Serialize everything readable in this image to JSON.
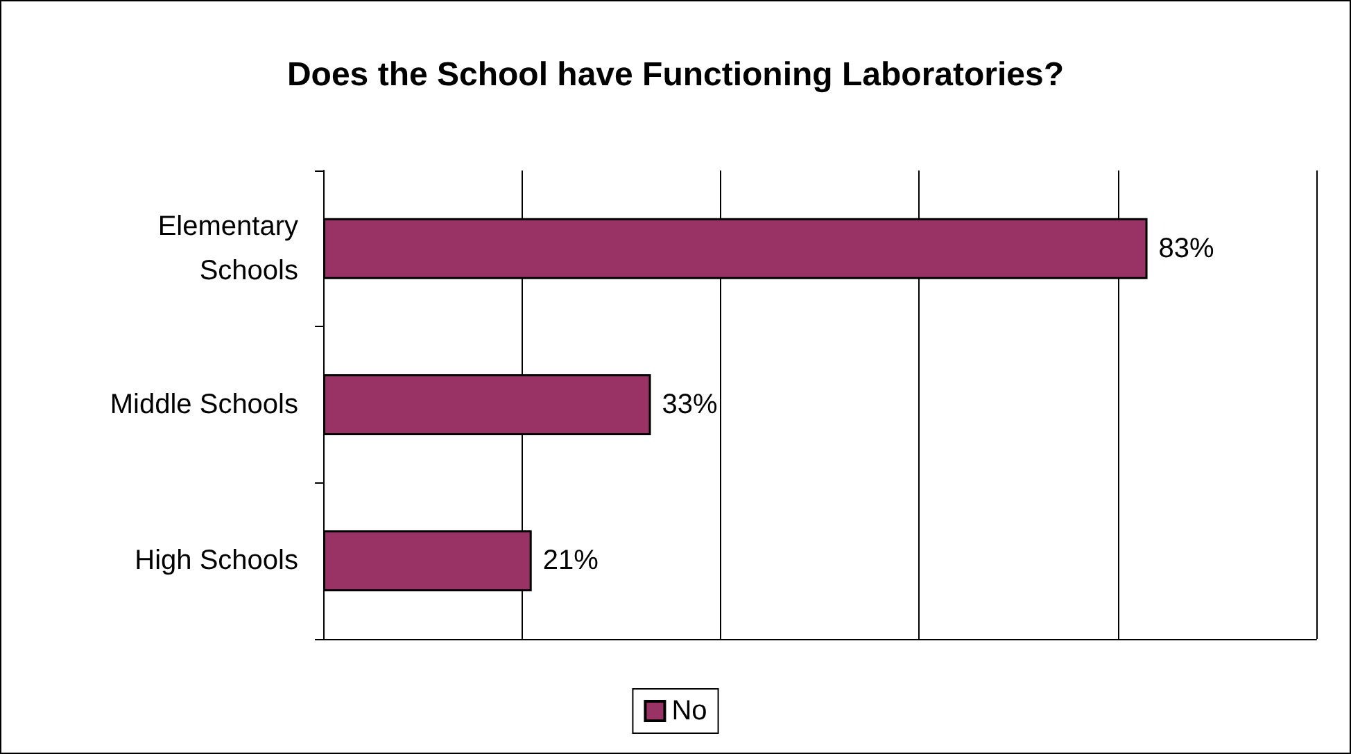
{
  "chart_data": {
    "type": "bar",
    "orientation": "horizontal",
    "title": "Does the School have Functioning Laboratories?",
    "categories": [
      "Elementary\nSchools",
      "Middle Schools",
      "High Schools"
    ],
    "series": [
      {
        "name": "No",
        "color": "#993366",
        "values": [
          83,
          33,
          21
        ],
        "value_labels": [
          "83%",
          "33%",
          "21%"
        ]
      }
    ],
    "xlim": [
      0,
      100
    ],
    "xticks": [
      {
        "value": 0,
        "label": null
      },
      {
        "value": 20,
        "label": null
      },
      {
        "value": 40,
        "label": null
      },
      {
        "value": 60,
        "label": null
      },
      {
        "value": 80,
        "label": null
      },
      {
        "value": 100,
        "label": null
      }
    ],
    "tick_labels": "y",
    "grid": "x",
    "legend": "bottom"
  }
}
